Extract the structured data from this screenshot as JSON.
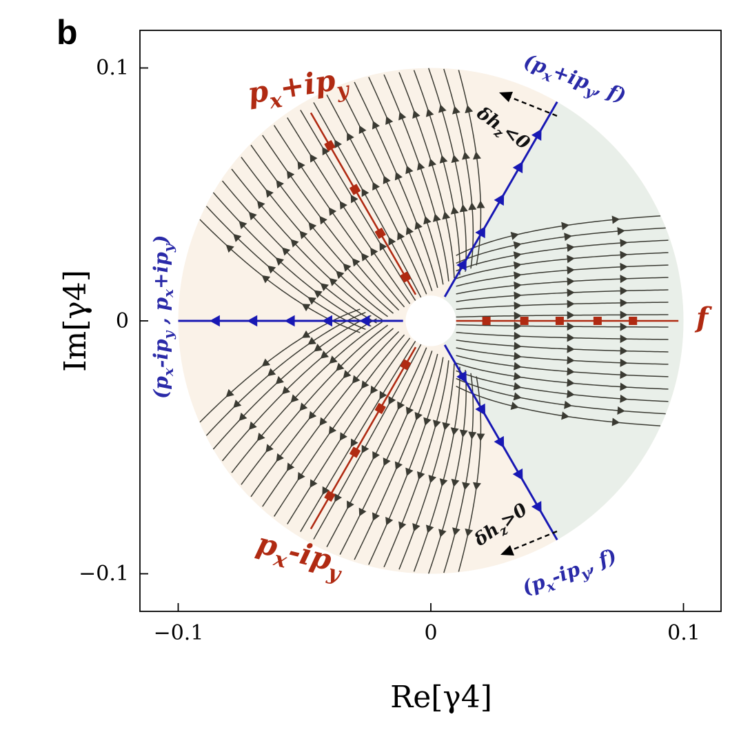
{
  "panel_label": "b",
  "chart_data": {
    "type": "scatter",
    "title": "",
    "xlabel": "Re[γ4]",
    "ylabel": "Im[γ4]",
    "xlim": [
      -0.115,
      0.115
    ],
    "ylim": [
      -0.115,
      0.115
    ],
    "x_ticks": [
      {
        "value": -0.1,
        "label": "−0.1"
      },
      {
        "value": 0,
        "label": "0"
      },
      {
        "value": 0.1,
        "label": "0.1"
      }
    ],
    "y_ticks": [
      {
        "value": 0.1,
        "label": "0.1"
      },
      {
        "value": 0,
        "label": "0"
      },
      {
        "value": -0.1,
        "label": "−0.1"
      }
    ],
    "grid": false,
    "disk_radius": 0.1,
    "hole_radius": 0.01,
    "region_colors": {
      "pairing_region": "#faf2e8",
      "f_region": "#e9efe9"
    },
    "colors": {
      "fixed_line": "#b02a12",
      "boundary_line": "#1818b4",
      "flow_line": "#3a3a32"
    },
    "fixed_lines": [
      {
        "name": "p_x+ip_y",
        "angle_deg": 120,
        "points_r": [
          0.02,
          0.04,
          0.06,
          0.08
        ]
      },
      {
        "name": "p_x-ip_y",
        "angle_deg": -120,
        "points_r": [
          0.02,
          0.04,
          0.06,
          0.08
        ]
      },
      {
        "name": "f",
        "angle_deg": 0,
        "points_r": [
          0.022,
          0.037,
          0.051,
          0.066,
          0.08
        ]
      }
    ],
    "boundary_lines": [
      {
        "name": "(p_x+ip_y, f)",
        "angle_deg": 60
      },
      {
        "name": "(p_x-ip_y, f)",
        "angle_deg": -60
      },
      {
        "name": "(p_x-ip_y, p_x+ip_y)",
        "angle_deg": 180
      }
    ],
    "phase_labels": {
      "px_ipy_plus": {
        "main": "p",
        "sub_x": "x",
        "mid": "+ip",
        "sub_y": "y"
      },
      "px_ipy_minus": {
        "main": "p",
        "sub_x": "x",
        "mid": "-ip",
        "sub_y": "y"
      },
      "f": "f",
      "boundary_top": {
        "open": "(",
        "main": "p",
        "sub_x": "x",
        "mid": "+ip",
        "sub_y": "y",
        "tail": ", f)"
      },
      "boundary_bottom": {
        "open": "(",
        "main": "p",
        "sub_x": "x",
        "mid": "-ip",
        "sub_y": "y",
        "tail": ", f)"
      },
      "boundary_left": {
        "open": "(",
        "main": "p",
        "sub_x": "x",
        "mid": "-ip",
        "sub_y": "y",
        "sep": " , ",
        "main2": "p",
        "sub_x2": "x",
        "mid2": "+ip",
        "sub_y2": "y",
        "close": ")"
      }
    },
    "annotations": {
      "top": {
        "lead": "δh",
        "sub": "z",
        "rel": "<0"
      },
      "bottom": {
        "lead": "δh",
        "sub": "z",
        "rel": ">0"
      }
    }
  }
}
